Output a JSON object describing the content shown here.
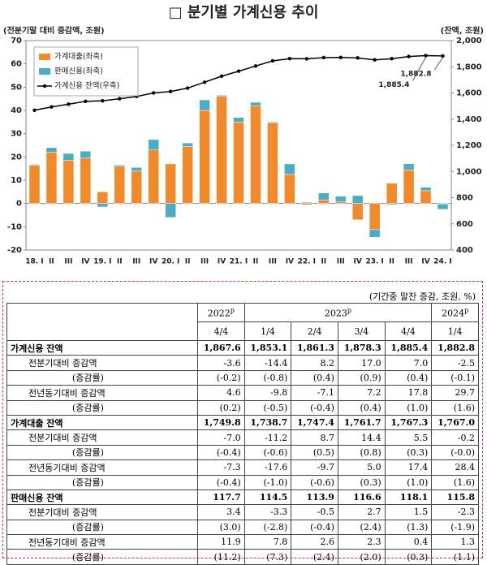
{
  "chart_data": {
    "type": "bar-line",
    "title": "□ 분기별 가계신용 추이",
    "ylabel": "(전분기말 대비 증감액, 조원)",
    "y2label": "(잔액, 조원)",
    "categories": [
      "18. I",
      "II",
      "III",
      "IV",
      "19. I",
      "II",
      "III",
      "IV",
      "20. I",
      "II",
      "III",
      "IV",
      "21. I",
      "II",
      "III",
      "IV",
      "22. I",
      "II",
      "III",
      "IV",
      "23. I",
      "II",
      "III",
      "IV",
      "24. I"
    ],
    "series": [
      {
        "name": "가계대출(좌축)",
        "color": "#f08a2a",
        "type": "bar",
        "values": [
          16.5,
          22,
          18.5,
          19.5,
          5,
          16,
          14,
          23,
          17,
          24.5,
          40,
          46,
          35,
          42,
          34.5,
          12.5,
          -0.6,
          1.5,
          0.7,
          -7.0,
          -11.2,
          8.7,
          14.4,
          5.5,
          -0.2
        ]
      },
      {
        "name": "판매신용(좌축)",
        "color": "#4bacc6",
        "type": "bar",
        "values": [
          0.3,
          2,
          3,
          3,
          -1.5,
          0.5,
          1.5,
          4.5,
          -6,
          1.5,
          4.5,
          0.5,
          2,
          1.5,
          0.5,
          4.5,
          0.5,
          3,
          2.4,
          3.4,
          -3.3,
          -0.5,
          2.7,
          1.5,
          -2.3
        ]
      },
      {
        "name": "가계신용 잔액(우축)",
        "color": "#000000",
        "type": "line",
        "axis": "y2",
        "values": [
          1468,
          1493,
          1514,
          1536,
          1540,
          1556,
          1573,
          1600,
          1611,
          1637,
          1682,
          1728,
          1766,
          1806,
          1845,
          1862,
          1861,
          1870,
          1871,
          1867.6,
          1853.1,
          1861.3,
          1878.3,
          1885.4,
          1882.8
        ],
        "value_labels": [
          null,
          null,
          null,
          null,
          null,
          null,
          null,
          null,
          null,
          null,
          null,
          null,
          null,
          null,
          null,
          null,
          null,
          null,
          null,
          null,
          null,
          null,
          null,
          "1,885.4",
          "1,882.8"
        ]
      }
    ],
    "ylim": [
      -20,
      70
    ],
    "yticks": [
      -20,
      -10,
      0,
      10,
      20,
      30,
      40,
      50,
      60,
      70
    ],
    "y2lim": [
      400,
      2000
    ],
    "y2ticks": [
      400,
      600,
      800,
      {
        "value": 1000,
        "label": "1,000"
      },
      {
        "value": 1200,
        "label": "1,200"
      },
      {
        "value": 1400,
        "label": "1,400"
      },
      {
        "value": 1600,
        "label": "1,600"
      },
      {
        "value": 1800,
        "label": "1,800"
      },
      {
        "value": 2000,
        "label": "2,000"
      }
    ],
    "grid": false,
    "legend": "upper left"
  },
  "table": {
    "note": "(기간중 말잔 증감, 조원, %)",
    "years": [
      {
        "year": "2022",
        "sup": "p"
      },
      {
        "year": "2023",
        "sup": "p"
      },
      {
        "year": "2024",
        "sup": "p"
      }
    ],
    "quarters": [
      "4/4",
      "1/4",
      "2/4",
      "3/4",
      "4/4",
      "1/4"
    ],
    "rows": [
      {
        "label": "가계신용 잔액",
        "values": [
          "1,867.6",
          "1,853.1",
          "1,861.3",
          "1,878.3",
          "1,885.4",
          "1,882.8"
        ]
      },
      {
        "label": "전분기대비 증감액",
        "values": [
          "-3.6",
          "-14.4",
          "8.2",
          "17.0",
          "7.0",
          "-2.5"
        ]
      },
      {
        "label": "(증감률)",
        "values": [
          "(-0.2)",
          "(-0.8)",
          "(0.4)",
          "(0.9)",
          "(0.4)",
          "(-0.1)"
        ]
      },
      {
        "label": "전년동기대비 증감액",
        "values": [
          "4.6",
          "-9.8",
          "-7.1",
          "7.2",
          "17.8",
          "29.7"
        ]
      },
      {
        "label": "(증감률)",
        "values": [
          "(0.2)",
          "(-0.5)",
          "(-0.4)",
          "(0.4)",
          "(1.0)",
          "(1.6)"
        ]
      },
      {
        "label": "가계대출 잔액",
        "values": [
          "1,749.8",
          "1,738.7",
          "1,747.4",
          "1,761.7",
          "1,767.3",
          "1,767.0"
        ]
      },
      {
        "label": "전분기대비 증감액",
        "values": [
          "-7.0",
          "-11.2",
          "8.7",
          "14.4",
          "5.5",
          "-0.2"
        ]
      },
      {
        "label": "(증감률)",
        "values": [
          "(-0.4)",
          "(-0.6)",
          "(0.5)",
          "(0.8)",
          "(0.3)",
          "(-0.0)"
        ]
      },
      {
        "label": "전년동기대비 증감액",
        "values": [
          "-7.3",
          "-17.6",
          "-9.7",
          "5.0",
          "17.4",
          "28.4"
        ]
      },
      {
        "label": "(증감률)",
        "values": [
          "(-0.4)",
          "(-1.0)",
          "(-0.6)",
          "(0.3)",
          "(1.0)",
          "(1.6)"
        ]
      },
      {
        "label": "판매신용 잔액",
        "values": [
          "117.7",
          "114.5",
          "113.9",
          "116.6",
          "118.1",
          "115.8"
        ]
      },
      {
        "label": "전분기대비 증감액",
        "values": [
          "3.4",
          "-3.3",
          "-0.5",
          "2.7",
          "1.5",
          "-2.3"
        ]
      },
      {
        "label": "(증감률)",
        "values": [
          "(3.0)",
          "(-2.8)",
          "(-0.4)",
          "(2.4)",
          "(1.3)",
          "(-1.9)"
        ]
      },
      {
        "label": "전년동기대비 증감액",
        "values": [
          "11.9",
          "7.8",
          "2.6",
          "2.3",
          "0.4",
          "1.3"
        ]
      },
      {
        "label": "(증감률)",
        "values": [
          "(11.2)",
          "(7.3)",
          "(2.4)",
          "(2.0)",
          "(0.3)",
          "(1.1)"
        ]
      }
    ]
  }
}
